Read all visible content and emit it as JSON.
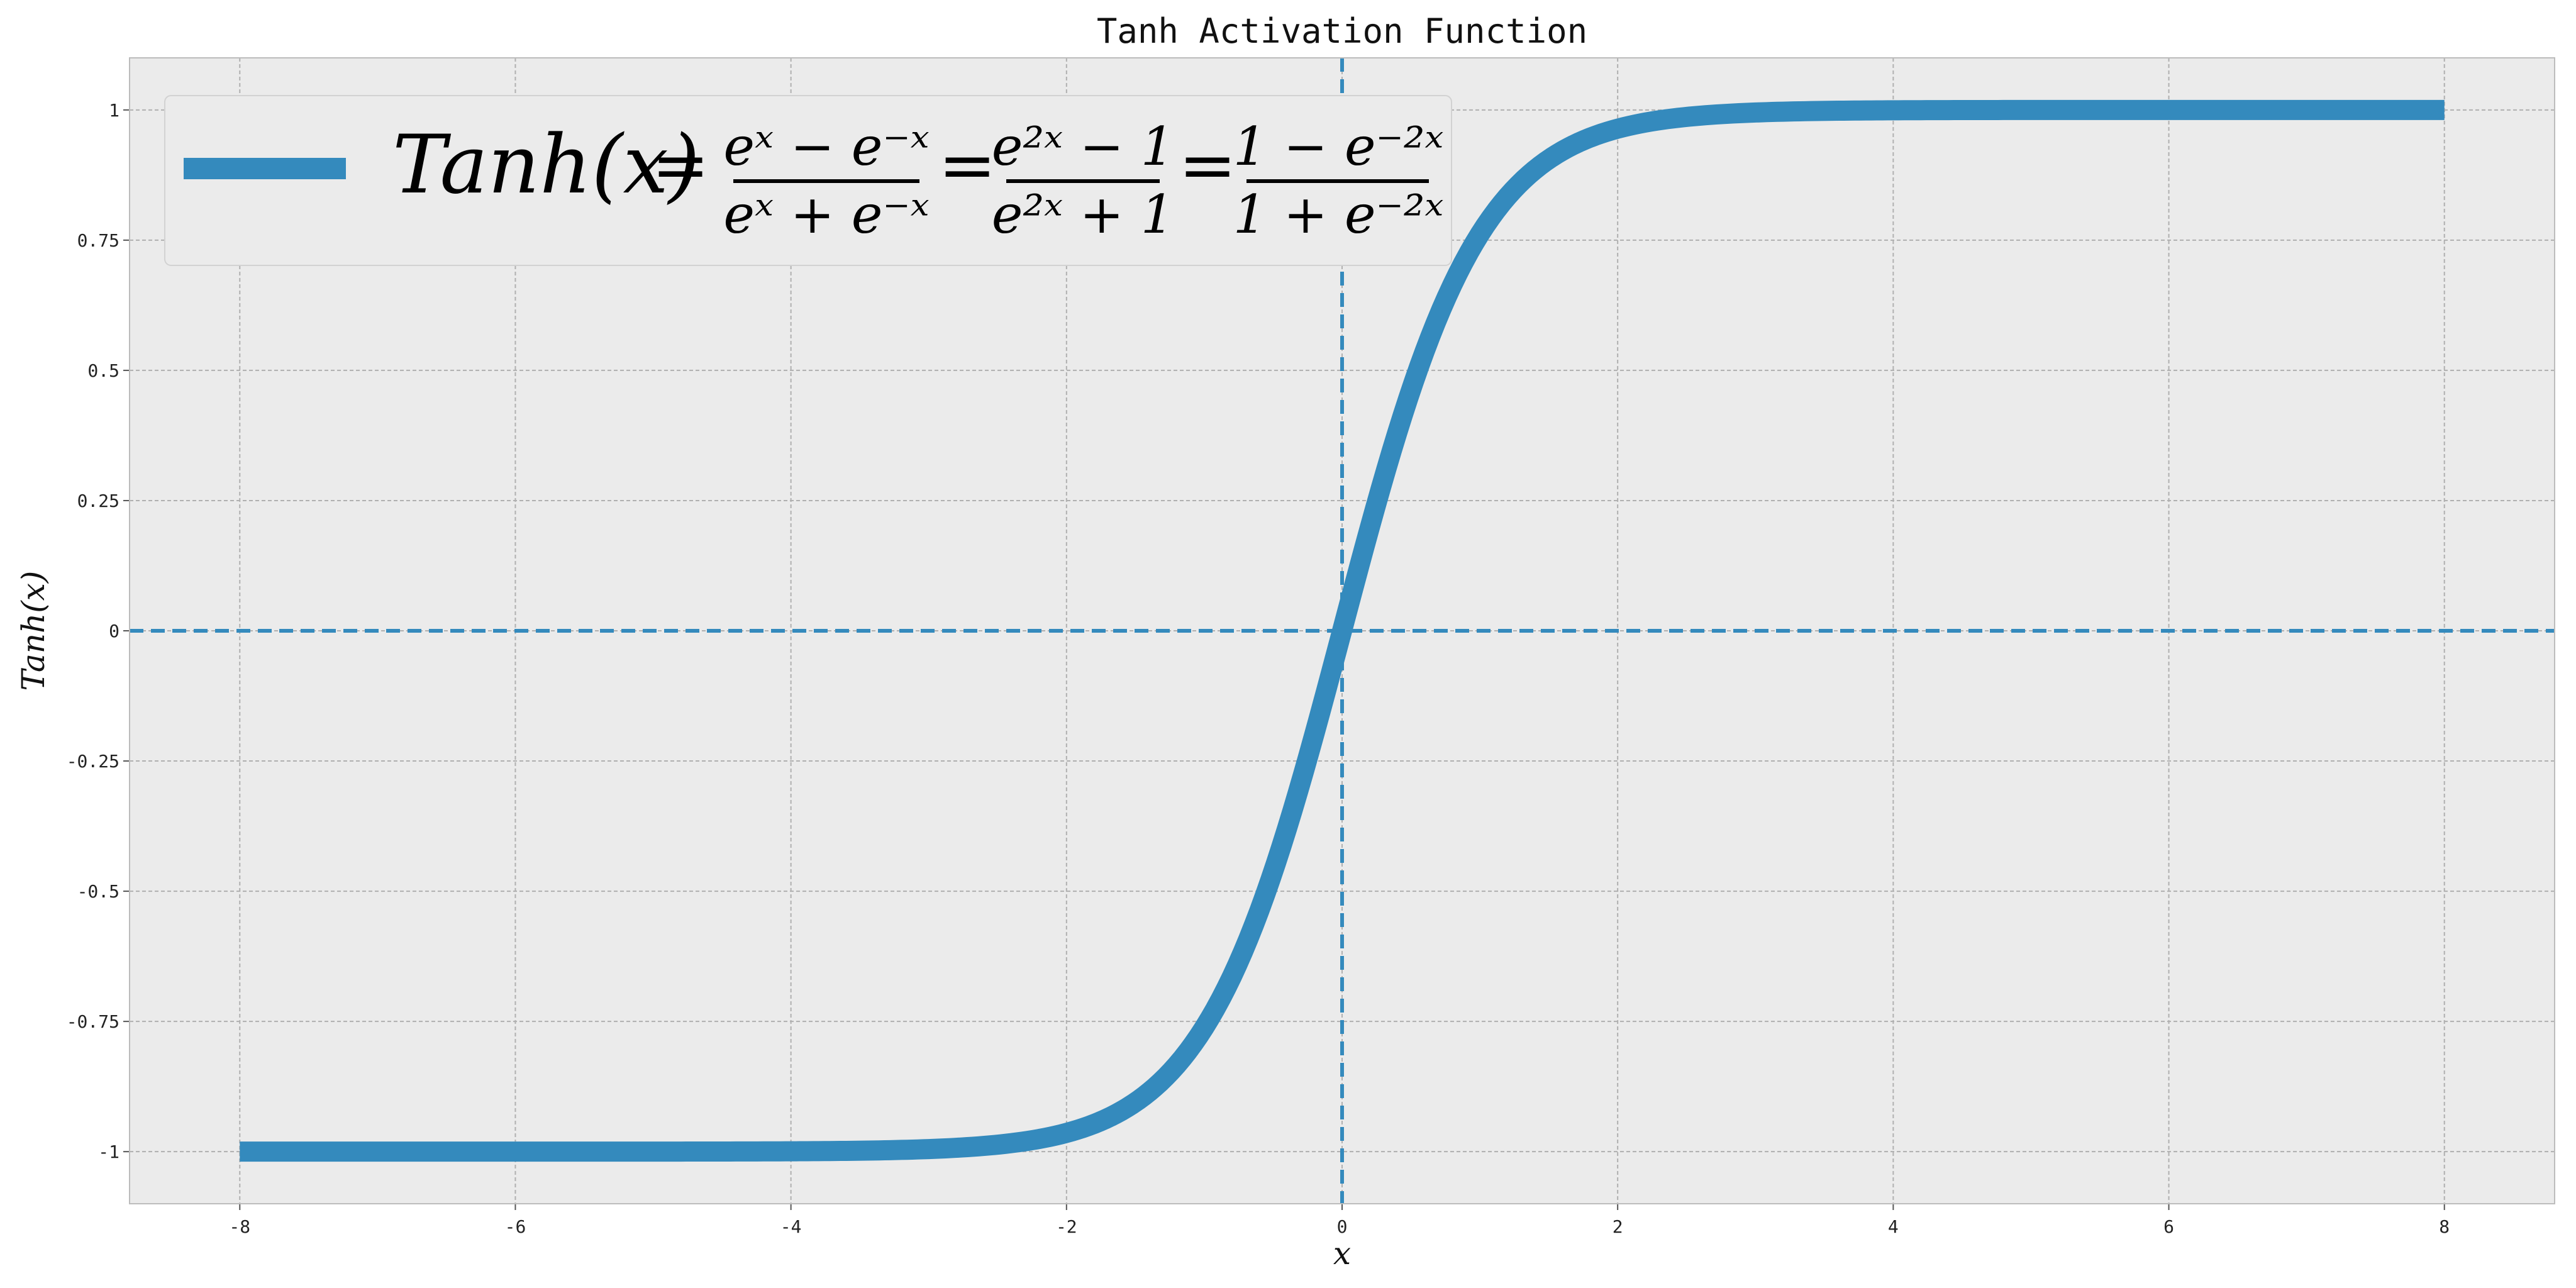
{
  "chart_data": {
    "type": "line",
    "title": "Tanh Activation Function",
    "xlabel": "x",
    "ylabel": "Tanh(x)",
    "xlim": [
      -8.8,
      8.8
    ],
    "ylim": [
      -1.1,
      1.1
    ],
    "x_ticks": [
      -8,
      -6,
      -4,
      -2,
      0,
      2,
      4,
      6,
      8
    ],
    "x_tick_labels": [
      "-8",
      "-6",
      "-4",
      "-2",
      "0",
      "2",
      "4",
      "6",
      "8"
    ],
    "y_ticks": [
      -1,
      -0.75,
      -0.5,
      -0.25,
      0,
      0.25,
      0.5,
      0.75,
      1
    ],
    "y_tick_labels": [
      "-1",
      "-0.75",
      "-0.5",
      "-0.25",
      "0",
      "0.25",
      "0.5",
      "0.75",
      "1"
    ],
    "grid": true,
    "legend_position": "top-left",
    "reference_lines": [
      {
        "orientation": "horizontal",
        "value": 0,
        "style": "dashed"
      },
      {
        "orientation": "vertical",
        "value": 0,
        "style": "dashed"
      }
    ],
    "series": [
      {
        "name": "Tanh(x) = (e^x − e^−x)/(e^x + e^−x) = (e^2x − 1)/(e^2x + 1) = (1 − e^−2x)/(1 + e^−2x)",
        "function": "tanh",
        "x_range": [
          -8,
          8
        ],
        "x": [
          -8,
          -6,
          -4,
          -3,
          -2,
          -1.5,
          -1,
          -0.5,
          0,
          0.5,
          1,
          1.5,
          2,
          3,
          4,
          6,
          8
        ],
        "y": [
          -1.0,
          -1.0,
          -0.9993,
          -0.9951,
          -0.964,
          -0.9051,
          -0.7616,
          -0.4621,
          0,
          0.4621,
          0.7616,
          0.9051,
          0.964,
          0.9951,
          0.9993,
          1.0,
          1.0
        ]
      }
    ],
    "colors": {
      "line": "#348ABD",
      "plot_background": "#EBEBEB",
      "grid": "#B0B0B0",
      "axis_border": "#BCBCBC"
    },
    "legend": {
      "lhs": "Tanh(x)",
      "frac1_num": "eˣ − e⁻ˣ",
      "frac1_den": "eˣ + e⁻ˣ",
      "frac2_num": "e²ˣ − 1",
      "frac2_den": "e²ˣ + 1",
      "frac3_num": "1 − e⁻²ˣ",
      "frac3_den": "1 + e⁻²ˣ"
    }
  }
}
